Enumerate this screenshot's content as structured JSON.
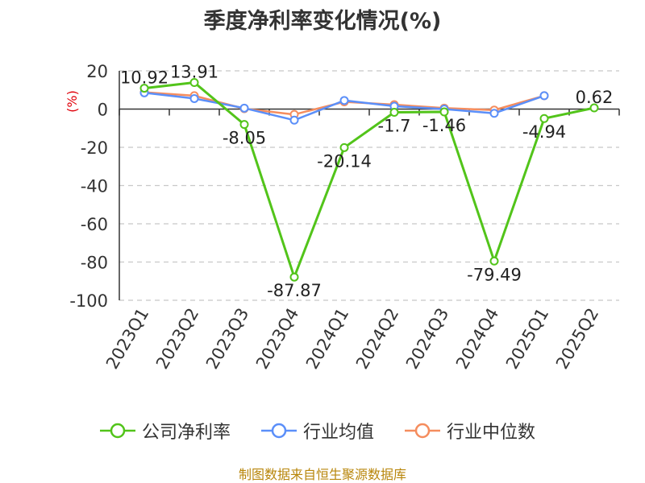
{
  "chart_data": {
    "type": "line",
    "title": "季度净利率变化情况(%)",
    "ylabel": "(%)",
    "xlabel": "",
    "categories": [
      "2023Q1",
      "2023Q2",
      "2023Q3",
      "2023Q4",
      "2024Q1",
      "2024Q2",
      "2024Q3",
      "2024Q4",
      "2025Q1",
      "2025Q2"
    ],
    "ylim": [
      -100,
      20
    ],
    "yticks": [
      20,
      0,
      -20,
      -40,
      -60,
      -80,
      -100
    ],
    "grid": true,
    "legend_position": "bottom",
    "series": [
      {
        "name": "公司净利率",
        "color": "#52c41a",
        "values": [
          10.92,
          13.91,
          -8.05,
          -87.87,
          -20.14,
          -1.7,
          -1.46,
          -79.49,
          -4.94,
          0.62
        ],
        "labels": [
          "10.92",
          "13.91",
          "-8.05",
          "-87.87",
          "-20.14",
          "-1.7",
          "-1.46",
          "-79.49",
          "-4.94",
          "0.62"
        ]
      },
      {
        "name": "行业均值",
        "color": "#5b8ff9",
        "values": [
          8.5,
          5.5,
          0.5,
          -5.8,
          4.5,
          1.5,
          0.0,
          -2.2,
          7.0,
          null
        ]
      },
      {
        "name": "行业中位数",
        "color": "#f58d5e",
        "values": [
          8.8,
          7.0,
          0.2,
          -2.8,
          3.8,
          2.3,
          0.5,
          -0.5,
          7.0,
          null
        ]
      }
    ]
  },
  "source": "制图数据来自恒生聚源数据库"
}
